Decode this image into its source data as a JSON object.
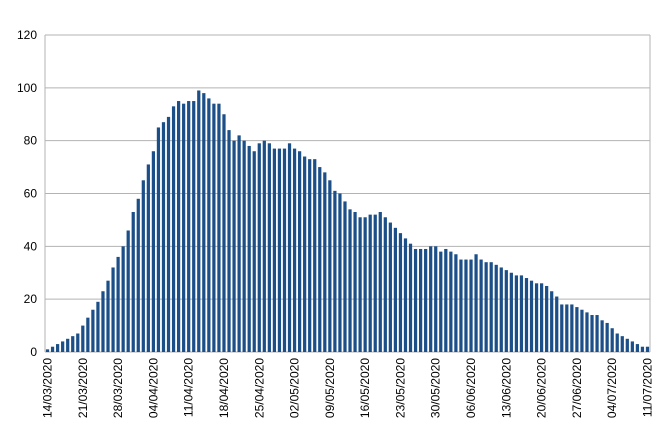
{
  "chart_data": {
    "type": "bar",
    "categories": [
      "14/03/2020",
      null,
      null,
      null,
      null,
      null,
      null,
      "21/03/2020",
      null,
      null,
      null,
      null,
      null,
      null,
      "28/03/2020",
      null,
      null,
      null,
      null,
      null,
      null,
      "04/04/2020",
      null,
      null,
      null,
      null,
      null,
      null,
      "11/04/2020",
      null,
      null,
      null,
      null,
      null,
      null,
      "18/04/2020",
      null,
      null,
      null,
      null,
      null,
      null,
      "25/04/2020",
      null,
      null,
      null,
      null,
      null,
      null,
      "02/05/2020",
      null,
      null,
      null,
      null,
      null,
      null,
      "09/05/2020",
      null,
      null,
      null,
      null,
      null,
      null,
      "16/05/2020",
      null,
      null,
      null,
      null,
      null,
      null,
      "23/05/2020",
      null,
      null,
      null,
      null,
      null,
      null,
      "30/05/2020",
      null,
      null,
      null,
      null,
      null,
      null,
      "06/06/2020",
      null,
      null,
      null,
      null,
      null,
      null,
      "13/06/2020",
      null,
      null,
      null,
      null,
      null,
      null,
      "20/06/2020",
      null,
      null,
      null,
      null,
      null,
      null,
      "27/06/2020",
      null,
      null,
      null,
      null,
      null,
      null,
      "04/07/2020",
      null,
      null,
      null,
      null,
      null,
      null,
      "11/07/2020"
    ],
    "values": [
      1,
      2,
      3,
      4,
      5,
      6,
      7,
      10,
      13,
      16,
      19,
      23,
      27,
      32,
      36,
      40,
      46,
      53,
      58,
      65,
      71,
      76,
      85,
      87,
      89,
      93,
      95,
      94,
      95,
      95,
      99,
      98,
      96,
      94,
      94,
      90,
      84,
      80,
      82,
      80,
      78,
      76,
      79,
      80,
      79,
      77,
      77,
      77,
      79,
      77,
      76,
      74,
      73,
      73,
      70,
      68,
      65,
      61,
      60,
      57,
      54,
      53,
      51,
      51,
      52,
      52,
      53,
      51,
      49,
      47,
      45,
      43,
      41,
      39,
      39,
      39,
      40,
      40,
      38,
      39,
      38,
      37,
      35,
      35,
      35,
      37,
      35,
      34,
      34,
      33,
      32,
      31,
      30,
      29,
      29,
      28,
      27,
      26,
      26,
      25,
      23,
      21,
      18,
      18,
      18,
      17,
      16,
      15,
      14,
      14,
      12,
      11,
      9,
      7,
      6,
      5,
      4,
      3,
      2,
      2
    ],
    "color": "#1c4f87",
    "ylim": [
      0,
      120
    ],
    "yticks": [
      0,
      20,
      40,
      60,
      80,
      100,
      120
    ],
    "grid": true
  }
}
